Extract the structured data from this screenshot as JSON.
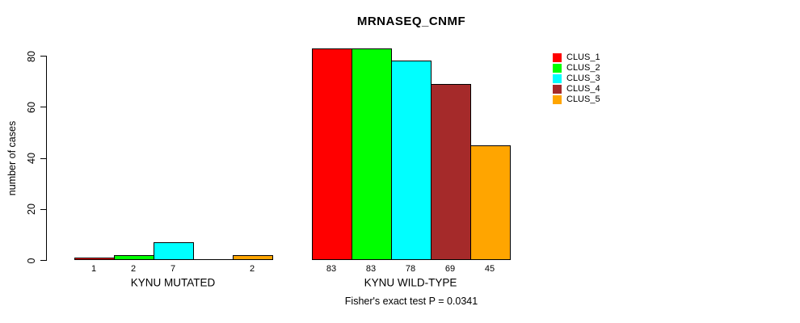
{
  "chart_data": {
    "type": "bar",
    "title": "MRNASEQ_CNMF",
    "ylabel": "number of cases",
    "footer": "Fisher's exact test P = 0.0341",
    "ylim": [
      0,
      80
    ],
    "yticks": [
      0,
      20,
      40,
      60,
      80
    ],
    "grid": false,
    "legend_position": "right",
    "series": [
      {
        "name": "CLUS_1",
        "color": "#FF0000"
      },
      {
        "name": "CLUS_2",
        "color": "#00FF00"
      },
      {
        "name": "CLUS_3",
        "color": "#00FFFF"
      },
      {
        "name": "CLUS_4",
        "color": "#A52A2A"
      },
      {
        "name": "CLUS_5",
        "color": "#FFA500"
      }
    ],
    "groups": [
      {
        "label": "KYNU MUTATED",
        "values": [
          1,
          2,
          7,
          0,
          2
        ],
        "bar_labels": [
          "1",
          "2",
          "7",
          "",
          "2"
        ]
      },
      {
        "label": "KYNU WILD-TYPE",
        "values": [
          83,
          83,
          78,
          69,
          45
        ],
        "bar_labels": [
          "83",
          "83",
          "78",
          "69",
          "45"
        ]
      }
    ]
  }
}
